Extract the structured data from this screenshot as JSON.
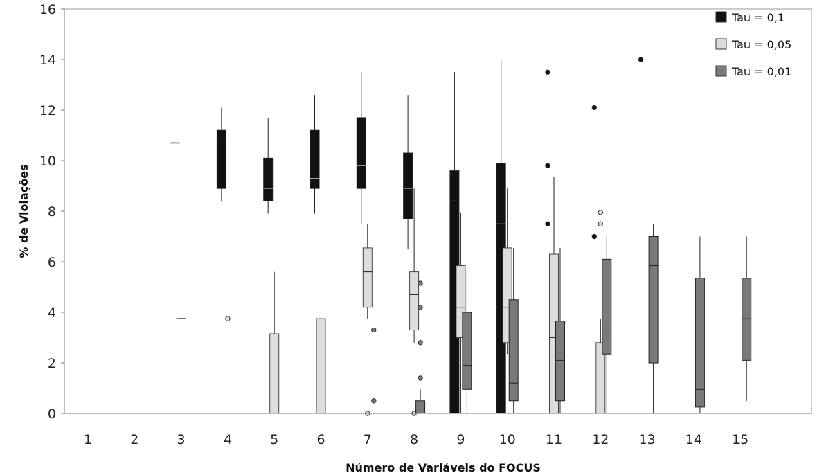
{
  "chart_data": {
    "type": "box",
    "xlabel": "Número de Variáveis do FOCUS",
    "ylabel": "% de Violações",
    "ylim": [
      0,
      16
    ],
    "yticks": [
      0,
      2,
      4,
      6,
      8,
      10,
      12,
      14,
      16
    ],
    "categories": [
      "1",
      "2",
      "3",
      "4",
      "5",
      "6",
      "7",
      "8",
      "9",
      "10",
      "11",
      "12",
      "13",
      "14",
      "15"
    ],
    "legend_position": "top-right",
    "series": [
      {
        "name": "Tau = 0,1",
        "color": "#111111",
        "boxes": [
          {
            "x": "3",
            "min": 10.7,
            "q1": 10.7,
            "median": 10.7,
            "q3": 10.7,
            "max": 10.7,
            "outliers": []
          },
          {
            "x": "4",
            "min": 8.4,
            "q1": 8.9,
            "median": 10.7,
            "q3": 11.2,
            "max": 12.1,
            "outliers": []
          },
          {
            "x": "5",
            "min": 7.9,
            "q1": 8.4,
            "median": 8.9,
            "q3": 10.1,
            "max": 11.7,
            "outliers": []
          },
          {
            "x": "6",
            "min": 7.9,
            "q1": 8.9,
            "median": 9.3,
            "q3": 11.2,
            "max": 12.6,
            "outliers": []
          },
          {
            "x": "7",
            "min": 7.5,
            "q1": 8.9,
            "median": 9.8,
            "q3": 11.7,
            "max": 13.5,
            "outliers": []
          },
          {
            "x": "8",
            "min": 6.5,
            "q1": 7.7,
            "median": 8.9,
            "q3": 10.3,
            "max": 12.6,
            "outliers": []
          },
          {
            "x": "9",
            "min": 0,
            "q1": 0,
            "median": 8.4,
            "q3": 9.6,
            "max": 13.5,
            "outliers": []
          },
          {
            "x": "10",
            "min": 0,
            "q1": 0,
            "median": 7.5,
            "q3": 9.9,
            "max": 14.0,
            "outliers": []
          },
          {
            "x": "11",
            "min": null,
            "q1": null,
            "median": null,
            "q3": null,
            "max": null,
            "outliers": [
              7.5,
              9.8,
              13.5
            ]
          },
          {
            "x": "12",
            "min": null,
            "q1": null,
            "median": null,
            "q3": null,
            "max": null,
            "outliers": [
              7.0,
              12.1
            ]
          },
          {
            "x": "13",
            "min": null,
            "q1": null,
            "median": null,
            "q3": null,
            "max": null,
            "outliers": [
              14.0
            ]
          }
        ]
      },
      {
        "name": "Tau = 0,05",
        "color": "#dddddd",
        "boxes": [
          {
            "x": "3",
            "min": 3.75,
            "q1": 3.75,
            "median": 3.75,
            "q3": 3.75,
            "max": 3.75,
            "outliers": []
          },
          {
            "x": "4",
            "min": null,
            "q1": null,
            "median": null,
            "q3": null,
            "max": null,
            "outliers": [
              3.75
            ]
          },
          {
            "x": "5",
            "min": 0,
            "q1": 0,
            "median": 0,
            "q3": 3.15,
            "max": 5.6,
            "outliers": []
          },
          {
            "x": "6",
            "min": 0,
            "q1": 0,
            "median": 0,
            "q3": 3.75,
            "max": 7.0,
            "outliers": []
          },
          {
            "x": "7",
            "min": 3.75,
            "q1": 4.2,
            "median": 5.6,
            "q3": 6.55,
            "max": 7.5,
            "outliers": [
              0.0
            ]
          },
          {
            "x": "8",
            "min": 2.8,
            "q1": 3.3,
            "median": 4.7,
            "q3": 5.6,
            "max": 8.9,
            "outliers": [
              0.0
            ]
          },
          {
            "x": "9",
            "min": 0,
            "q1": 3.0,
            "median": 4.2,
            "q3": 5.85,
            "max": 7.95,
            "outliers": []
          },
          {
            "x": "10",
            "min": 2.35,
            "q1": 2.8,
            "median": 4.2,
            "q3": 6.55,
            "max": 8.9,
            "outliers": []
          },
          {
            "x": "11",
            "min": 0,
            "q1": 0,
            "median": 3.0,
            "q3": 6.3,
            "max": 9.35,
            "outliers": []
          },
          {
            "x": "12",
            "min": 0,
            "q1": 0,
            "median": 0,
            "q3": 2.8,
            "max": 3.75,
            "outliers": [
              7.5,
              7.95
            ]
          }
        ]
      },
      {
        "name": "Tau = 0,01",
        "color": "#7a7a7a",
        "boxes": [
          {
            "x": "7",
            "min": null,
            "q1": null,
            "median": null,
            "q3": null,
            "max": null,
            "outliers": [
              0.5,
              3.3
            ]
          },
          {
            "x": "8",
            "min": 0,
            "q1": 0,
            "median": 0,
            "q3": 0.5,
            "max": 0.95,
            "outliers": [
              1.4,
              2.8,
              4.2,
              5.15
            ]
          },
          {
            "x": "9",
            "min": 0,
            "q1": 0.95,
            "median": 1.9,
            "q3": 4.0,
            "max": 5.6,
            "outliers": []
          },
          {
            "x": "10",
            "min": 0,
            "q1": 0.5,
            "median": 1.2,
            "q3": 4.5,
            "max": 6.55,
            "outliers": []
          },
          {
            "x": "11",
            "min": 0,
            "q1": 0.5,
            "median": 2.1,
            "q3": 3.65,
            "max": 6.55,
            "outliers": []
          },
          {
            "x": "12",
            "min": 0,
            "q1": 2.35,
            "median": 3.3,
            "q3": 6.1,
            "max": 7.0,
            "outliers": []
          },
          {
            "x": "13",
            "min": 0,
            "q1": 2.0,
            "median": 5.85,
            "q3": 7.0,
            "max": 7.5,
            "outliers": []
          },
          {
            "x": "14",
            "min": 0,
            "q1": 0.25,
            "median": 0.95,
            "q3": 5.35,
            "max": 7.0,
            "outliers": []
          },
          {
            "x": "15",
            "min": 0.5,
            "q1": 2.1,
            "median": 3.75,
            "q3": 5.35,
            "max": 7.0,
            "outliers": []
          }
        ]
      }
    ]
  }
}
